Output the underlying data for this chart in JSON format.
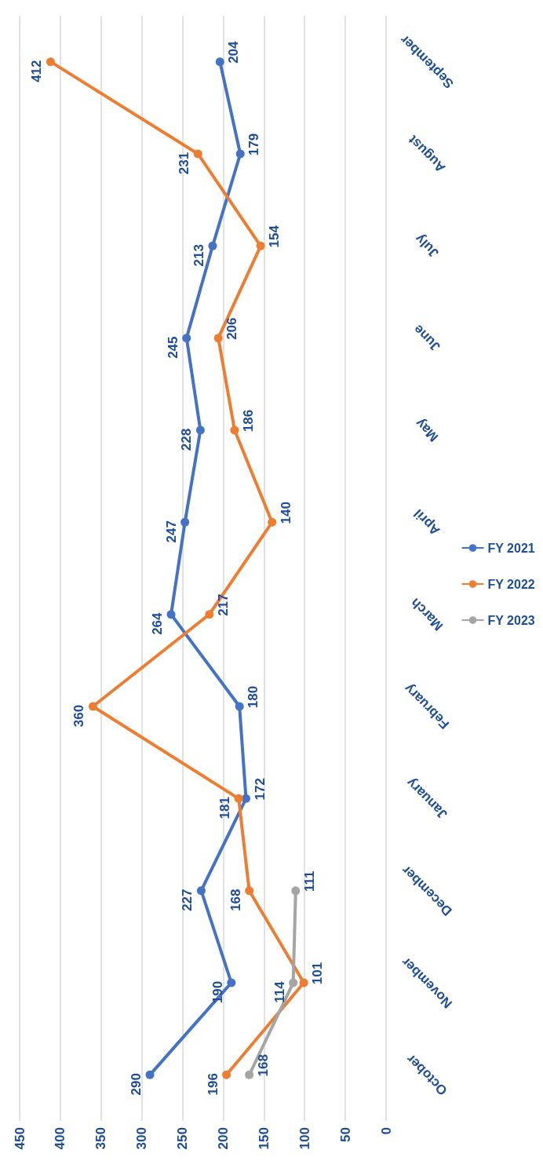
{
  "chart_data": {
    "type": "line",
    "orientation": "horizontal",
    "categories": [
      "September",
      "August",
      "July",
      "June",
      "May",
      "April",
      "March",
      "February",
      "January",
      "December",
      "November",
      "October"
    ],
    "series": [
      {
        "name": "FY 2021",
        "color": "#4472c4",
        "values": [
          204,
          179,
          213,
          245,
          228,
          247,
          264,
          180,
          172,
          227,
          190,
          290
        ]
      },
      {
        "name": "FY 2022",
        "color": "#ed7d31",
        "values": [
          412,
          231,
          154,
          206,
          186,
          140,
          217,
          360,
          181,
          168,
          101,
          196
        ]
      },
      {
        "name": "FY 2023",
        "color": "#a5a5a5",
        "values": [
          null,
          null,
          null,
          null,
          null,
          null,
          null,
          null,
          null,
          111,
          114,
          168
        ]
      }
    ],
    "xlim": [
      450,
      0
    ],
    "xticks": [
      450,
      400,
      350,
      300,
      250,
      200,
      150,
      100,
      50,
      0
    ],
    "grid": "x",
    "legend": "right",
    "marker": "circle",
    "line_style": "solid",
    "data_labels": true
  }
}
